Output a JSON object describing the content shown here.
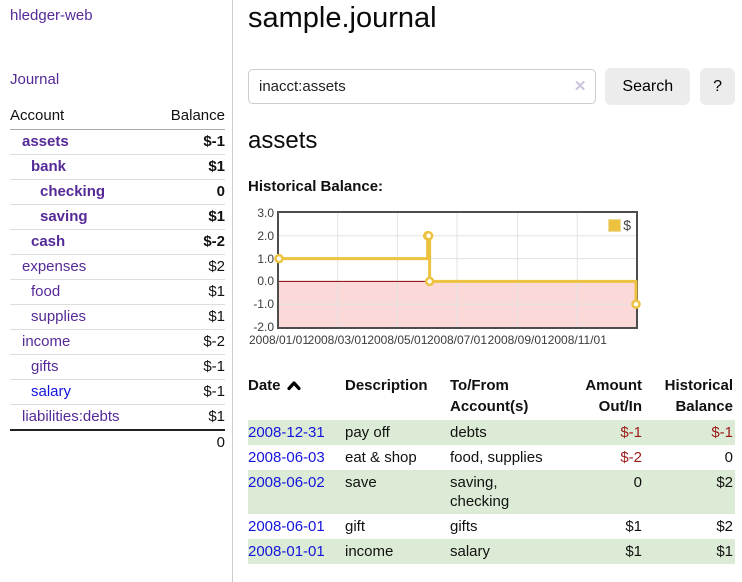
{
  "app": {
    "brand": "hledger-web"
  },
  "sidebar": {
    "nav_journal": "Journal",
    "accounts": {
      "header_account": "Account",
      "header_balance": "Balance",
      "rows": [
        {
          "name": "assets",
          "balance": "$-1"
        },
        {
          "name": "bank",
          "balance": "$1"
        },
        {
          "name": "checking",
          "balance": "0"
        },
        {
          "name": "saving",
          "balance": "$1"
        },
        {
          "name": "cash",
          "balance": "$-2"
        },
        {
          "name": "expenses",
          "balance": "$2"
        },
        {
          "name": "food",
          "balance": "$1"
        },
        {
          "name": "supplies",
          "balance": "$1"
        },
        {
          "name": "income",
          "balance": "$-2"
        },
        {
          "name": "gifts",
          "balance": "$-1"
        },
        {
          "name": "salary",
          "balance": "$-1"
        },
        {
          "name": "liabilities:debts",
          "balance": "$1"
        }
      ],
      "total": "0"
    }
  },
  "header": {
    "title": "sample.journal"
  },
  "search": {
    "value": "inacct:assets",
    "clear_icon": "✕",
    "button": "Search",
    "help_button": "?"
  },
  "account_page": {
    "title": "assets",
    "chart_label": "Historical Balance:"
  },
  "chart_data": {
    "type": "line",
    "title": "Historical Balance",
    "step": true,
    "ylim": [
      -2,
      3
    ],
    "y_ticks": [
      "3.0",
      "2.0",
      "1.0",
      "0.0",
      "-1.0",
      "-2.0"
    ],
    "x_ticks": [
      {
        "label": "2008/01/01",
        "x": 0.0
      },
      {
        "label": "2008/03/01",
        "x": 0.1644
      },
      {
        "label": "2008/05/01",
        "x": 0.3315
      },
      {
        "label": "2008/07/01",
        "x": 0.4986
      },
      {
        "label": "2008/09/01",
        "x": 0.6685
      },
      {
        "label": "2008/11/01",
        "x": 0.8356
      }
    ],
    "series": [
      {
        "name": "$",
        "color": "#edc240",
        "points": [
          {
            "date": "2008-01-01",
            "x": 0.0,
            "y": 1
          },
          {
            "date": "2008-06-01",
            "x": 0.4164,
            "y": 2
          },
          {
            "date": "2008-06-02",
            "x": 0.4192,
            "y": 2
          },
          {
            "date": "2008-06-03",
            "x": 0.4219,
            "y": 0
          },
          {
            "date": "2008-12-31",
            "x": 1.0,
            "y": -1
          }
        ]
      }
    ],
    "grid": true,
    "legend_position": "top-right",
    "negative_region_color": "#fbd9d9",
    "zero_line_color": "#8b0000",
    "grid_color": "#e3e3e3"
  },
  "register": {
    "columns": [
      {
        "line1": "Date",
        "line2": ""
      },
      {
        "line1": "Description",
        "line2": ""
      },
      {
        "line1": "To/From",
        "line2": "Account(s)"
      },
      {
        "line1": "Amount",
        "line2": "Out/In"
      },
      {
        "line1": "Historical",
        "line2": "Balance"
      }
    ],
    "rows": [
      {
        "date": "2008-12-31",
        "description": "pay off",
        "accounts": "debts",
        "amount": "$-1",
        "balance": "$-1"
      },
      {
        "date": "2008-06-03",
        "description": "eat & shop",
        "accounts": "food, supplies",
        "amount": "$-2",
        "balance": "0"
      },
      {
        "date": "2008-06-02",
        "description": "save",
        "accounts": "saving, checking",
        "amount": "0",
        "balance": "$2"
      },
      {
        "date": "2008-06-01",
        "description": "gift",
        "accounts": "gifts",
        "amount": "$1",
        "balance": "$2"
      },
      {
        "date": "2008-01-01",
        "description": "income",
        "accounts": "salary",
        "amount": "$1",
        "balance": "$1"
      }
    ]
  },
  "colors": {
    "link_purple": "#552a97",
    "link_blue": "#1414dd",
    "negative_strong": "#9c1a1a",
    "negative_muted": "#bd6a6a",
    "row_green": "#dcebd5",
    "series_yellow": "#edc240",
    "negative_region": "#fbd9d9",
    "zero_line": "#8b0000"
  }
}
